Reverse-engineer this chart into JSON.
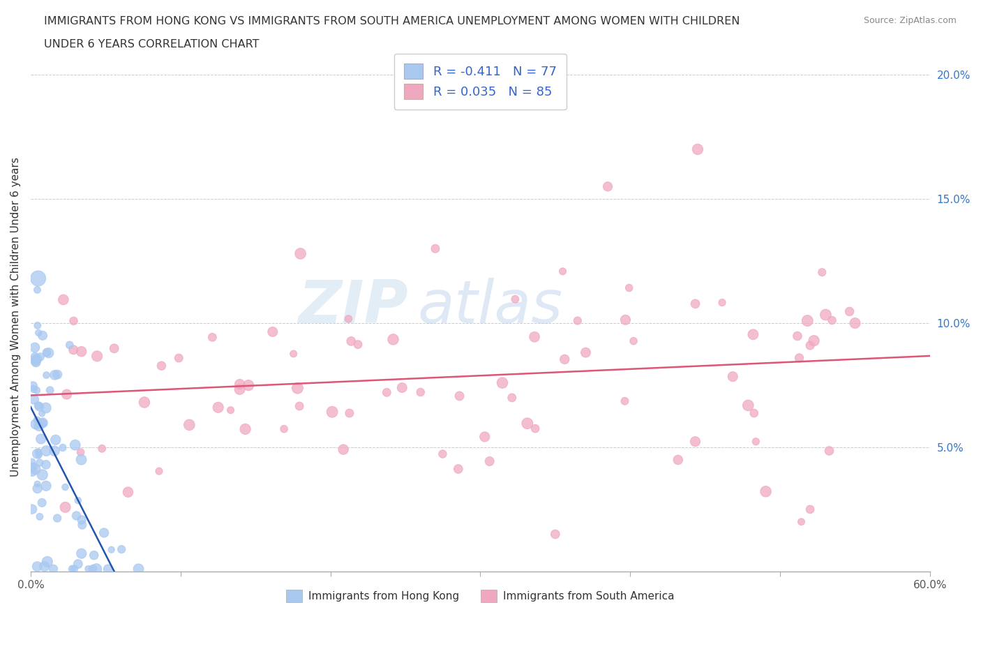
{
  "title_line1": "IMMIGRANTS FROM HONG KONG VS IMMIGRANTS FROM SOUTH AMERICA UNEMPLOYMENT AMONG WOMEN WITH CHILDREN",
  "title_line2": "UNDER 6 YEARS CORRELATION CHART",
  "source": "Source: ZipAtlas.com",
  "ylabel": "Unemployment Among Women with Children Under 6 years",
  "hk_R": -0.411,
  "hk_N": 77,
  "sa_R": 0.035,
  "sa_N": 85,
  "hk_color": "#a8c8f0",
  "sa_color": "#f0a8c0",
  "hk_line_color": "#2255aa",
  "sa_line_color": "#dd5577",
  "watermark_zip": "ZIP",
  "watermark_atlas": "atlas",
  "xlim": [
    0.0,
    0.6
  ],
  "ylim": [
    0.0,
    0.205
  ],
  "yticks": [
    0.0,
    0.05,
    0.1,
    0.15,
    0.2
  ],
  "ytick_labels": [
    "",
    "5.0%",
    "10.0%",
    "15.0%",
    "20.0%"
  ],
  "xticks": [
    0.0,
    0.1,
    0.2,
    0.3,
    0.4,
    0.5,
    0.6
  ],
  "xtick_labels": [
    "0.0%",
    "",
    "",
    "",
    "",
    "",
    "60.0%"
  ]
}
